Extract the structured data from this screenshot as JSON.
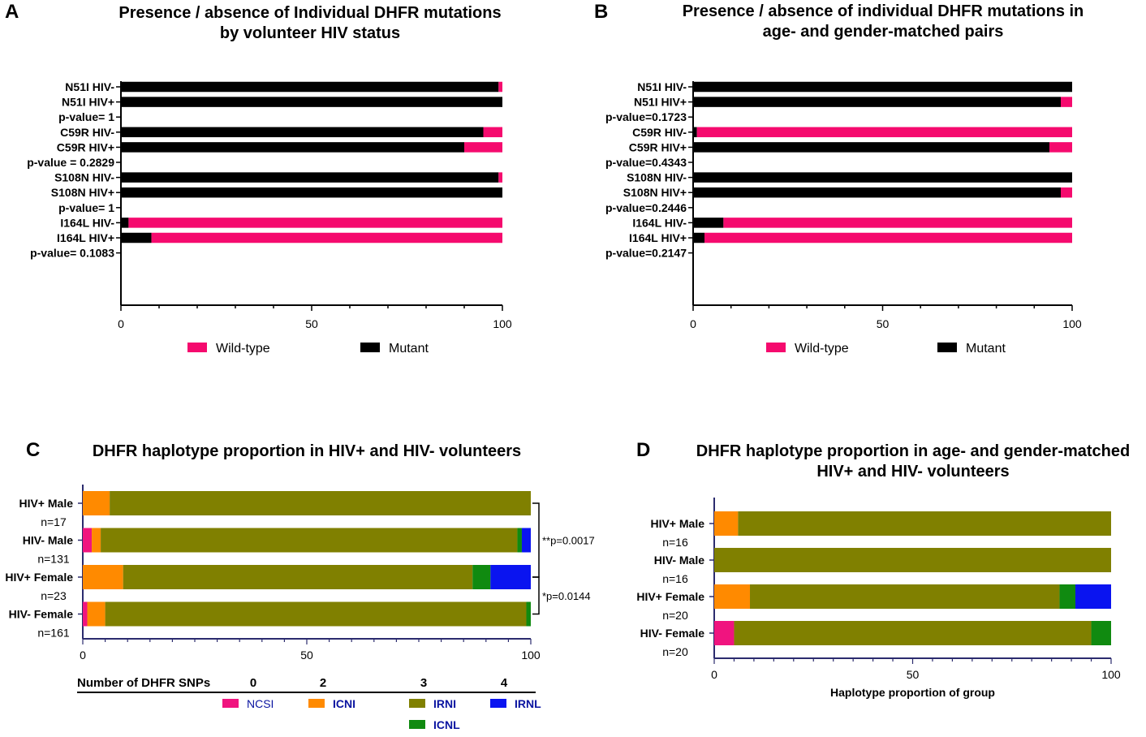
{
  "colors": {
    "wild": "#f50a6e",
    "mutant": "#000000",
    "axis": "#000000",
    "axis_cd": "#2b2b6e",
    "ncsi": "#f0147f",
    "icni": "#ff8a00",
    "irni": "#808000",
    "icnl": "#108a10",
    "irnl": "#0a14f0",
    "legend_text_blue": "#0a14a0"
  },
  "chart_data": [
    {
      "panel": "A",
      "type": "bar",
      "stacked": true,
      "orientation": "horizontal",
      "title": [
        "Presence / absence of Individual DHFR mutations",
        "by volunteer HIV status"
      ],
      "xlim": [
        0,
        100
      ],
      "xticks": [
        "0",
        "50",
        "100"
      ],
      "rows": [
        {
          "label": "N51I HIV-",
          "mutant": 99,
          "wild": 1
        },
        {
          "label": "N51I HIV+",
          "mutant": 100,
          "wild": 0
        },
        {
          "label": "p-value= 1",
          "text_only": true
        },
        {
          "label": "C59R HIV-",
          "mutant": 95,
          "wild": 5
        },
        {
          "label": "C59R HIV+",
          "mutant": 90,
          "wild": 10
        },
        {
          "label": "p-value = 0.2829",
          "text_only": true
        },
        {
          "label": "S108N HIV-",
          "mutant": 99,
          "wild": 1
        },
        {
          "label": "S108N HIV+",
          "mutant": 100,
          "wild": 0
        },
        {
          "label": "p-value= 1",
          "text_only": true
        },
        {
          "label": "I164L HIV-",
          "mutant": 2,
          "wild": 98
        },
        {
          "label": "I164L HIV+",
          "mutant": 8,
          "wild": 92
        },
        {
          "label": "p-value= 0.1083",
          "text_only": true
        }
      ],
      "legend": [
        {
          "name": "Wild-type",
          "color_key": "wild"
        },
        {
          "name": "Mutant",
          "color_key": "mutant"
        }
      ]
    },
    {
      "panel": "B",
      "type": "bar",
      "stacked": true,
      "orientation": "horizontal",
      "title": [
        "Presence / absence of individual DHFR mutations in",
        "age- and gender-matched pairs"
      ],
      "xlim": [
        0,
        100
      ],
      "xticks": [
        "0",
        "50",
        "100"
      ],
      "rows": [
        {
          "label": "N51I HIV-",
          "mutant": 100,
          "wild": 0
        },
        {
          "label": "N51I HIV+",
          "mutant": 97,
          "wild": 3
        },
        {
          "label": "p-value=0.1723",
          "text_only": true
        },
        {
          "label": "C59R HIV-",
          "mutant": 1,
          "wild": 99
        },
        {
          "label": "C59R HIV+",
          "mutant": 94,
          "wild": 6
        },
        {
          "label": "p-value=0.4343",
          "text_only": true
        },
        {
          "label": "S108N HIV-",
          "mutant": 100,
          "wild": 0
        },
        {
          "label": "S108N HIV+",
          "mutant": 97,
          "wild": 3
        },
        {
          "label": "p-value=0.2446",
          "text_only": true
        },
        {
          "label": "I164L HIV-",
          "mutant": 8,
          "wild": 92
        },
        {
          "label": "I164L HIV+",
          "mutant": 3,
          "wild": 97
        },
        {
          "label": "p-value=0.2147",
          "text_only": true
        }
      ],
      "legend": [
        {
          "name": "Wild-type",
          "color_key": "wild"
        },
        {
          "name": "Mutant",
          "color_key": "mutant"
        }
      ]
    },
    {
      "panel": "C",
      "type": "bar",
      "stacked": true,
      "orientation": "horizontal",
      "title": [
        "DHFR haplotype proportion in HIV+ and HIV- volunteers"
      ],
      "xlim": [
        0,
        100
      ],
      "xticks": [
        "0",
        "50",
        "100"
      ],
      "series_order": [
        "NCSI",
        "ICNI",
        "IRNI",
        "ICNL",
        "IRNL"
      ],
      "groups": [
        {
          "label": "HIV+ Male",
          "n": "n=17",
          "values": {
            "NCSI": 0,
            "ICNI": 6,
            "IRNI": 94,
            "ICNL": 0,
            "IRNL": 0
          }
        },
        {
          "label": "HIV- Male",
          "n": "n=131",
          "values": {
            "NCSI": 2,
            "ICNI": 2,
            "IRNI": 93,
            "ICNL": 1,
            "IRNL": 2
          }
        },
        {
          "label": "HIV+ Female",
          "n": "n=23",
          "values": {
            "NCSI": 0,
            "ICNI": 9,
            "IRNI": 78,
            "ICNL": 4,
            "IRNL": 9
          }
        },
        {
          "label": "HIV- Female",
          "n": "n=161",
          "values": {
            "NCSI": 1,
            "ICNI": 4,
            "IRNI": 94,
            "ICNL": 1,
            "IRNL": 0
          }
        }
      ],
      "annotations": [
        {
          "text": "**p=0.0017",
          "between": [
            0,
            2
          ]
        },
        {
          "text": "*p=0.0144",
          "between": [
            2,
            3
          ]
        }
      ],
      "snp_header": {
        "label": "Number of DHFR SNPs",
        "counts": [
          "0",
          "2",
          "3",
          "4"
        ]
      },
      "legend": [
        {
          "name": "NCSI",
          "color_key": "ncsi"
        },
        {
          "name": "ICNI",
          "color_key": "icni"
        },
        {
          "name": "IRNI",
          "color_key": "irni"
        },
        {
          "name": "IRNL",
          "color_key": "irnl"
        },
        {
          "name": "ICNL",
          "color_key": "icnl"
        }
      ]
    },
    {
      "panel": "D",
      "type": "bar",
      "stacked": true,
      "orientation": "horizontal",
      "title": [
        "DHFR haplotype proportion in age- and gender-matched",
        "HIV+ and HIV- volunteers"
      ],
      "xlabel": "Haplotype proportion of group",
      "xlim": [
        0,
        100
      ],
      "xticks": [
        "0",
        "50",
        "100"
      ],
      "series_order": [
        "NCSI",
        "ICNI",
        "IRNI",
        "ICNL",
        "IRNL"
      ],
      "groups": [
        {
          "label": "HIV+ Male",
          "n": "n=16",
          "values": {
            "NCSI": 0,
            "ICNI": 6,
            "IRNI": 94,
            "ICNL": 0,
            "IRNL": 0
          }
        },
        {
          "label": "HIV- Male",
          "n": "n=16",
          "values": {
            "NCSI": 0,
            "ICNI": 0,
            "IRNI": 100,
            "ICNL": 0,
            "IRNL": 0
          }
        },
        {
          "label": "HIV+ Female",
          "n": "n=20",
          "values": {
            "NCSI": 0,
            "ICNI": 9,
            "IRNI": 78,
            "ICNL": 4,
            "IRNL": 9
          }
        },
        {
          "label": "HIV- Female",
          "n": "n=20",
          "values": {
            "NCSI": 5,
            "ICNI": 0,
            "IRNI": 90,
            "ICNL": 5,
            "IRNL": 0
          }
        }
      ]
    }
  ]
}
